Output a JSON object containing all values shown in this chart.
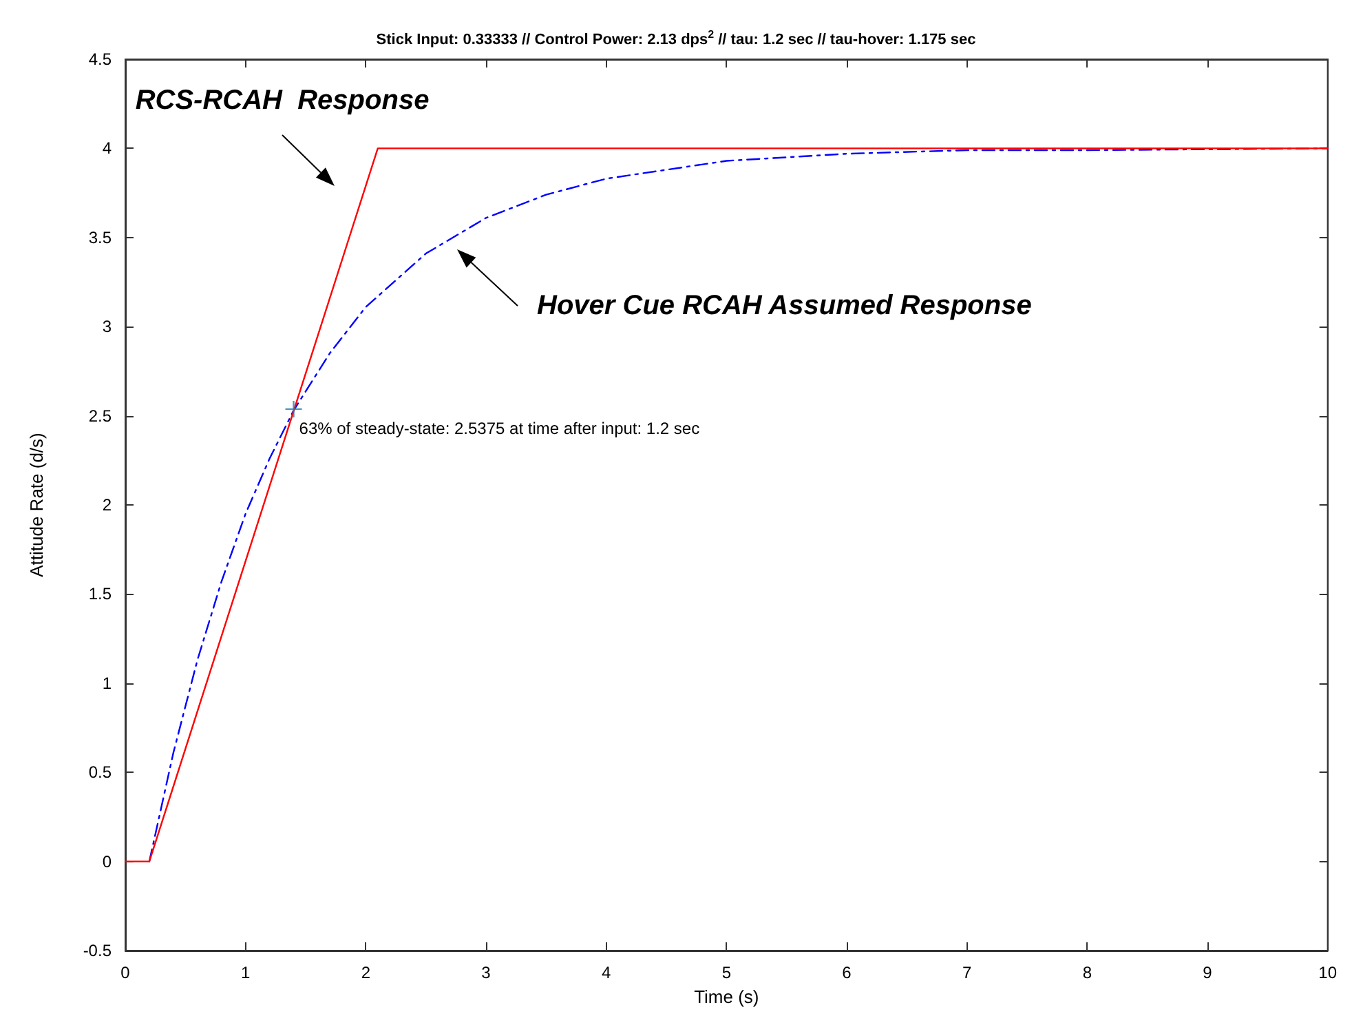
{
  "chart_data": {
    "type": "line",
    "title": "Stick Input: 0.33333 // Control Power: 2.13 dps$^{2}$ // tau: 1.2 sec // tau-hover: 1.175 sec",
    "xlabel": "Time (s)",
    "ylabel": "Attitude Rate (d/s)",
    "xlim": [
      0,
      10
    ],
    "xticks": [
      0,
      1,
      2,
      3,
      4,
      5,
      6,
      7,
      8,
      9,
      10
    ],
    "ylim": [
      -0.5,
      4.5
    ],
    "yticks": [
      -0.5,
      0,
      0.5,
      1,
      1.5,
      2,
      2.5,
      3,
      3.5,
      4,
      4.5
    ],
    "grid": false,
    "marker": "none",
    "series": [
      {
        "color": "#ff0000",
        "line_style": "solid",
        "x": [
          0,
          0.2,
          2.1,
          10
        ],
        "values": [
          0,
          0,
          4,
          4
        ]
      },
      {
        "color": "#0000ff",
        "line_style": "dashed",
        "x": [
          0.2,
          0.4,
          0.6,
          0.8,
          1.0,
          1.2,
          1.4,
          1.7,
          2.0,
          2.5,
          3.0,
          3.5,
          4.0,
          5.0,
          6.0,
          7.0,
          8.0,
          10.0
        ],
        "values": [
          0,
          0.61,
          1.13,
          1.57,
          1.95,
          2.26,
          2.53,
          2.85,
          3.11,
          3.41,
          3.61,
          3.74,
          3.83,
          3.93,
          3.97,
          3.99,
          3.99,
          4.0
        ]
      },
      {
        "type": "scatter",
        "color": "#1a7fb5",
        "marker": "cross",
        "x": [
          1.4
        ],
        "values": [
          2.5375
        ]
      }
    ],
    "annotations": [
      "RCS-RCAH  Response",
      "Hover Cue RCAH Assumed Response",
      {
        "text": "63% of steady-state: 2.5375 at time after input: 1.2 sec",
        "x": 1.4,
        "y": 2.5375
      }
    ]
  }
}
